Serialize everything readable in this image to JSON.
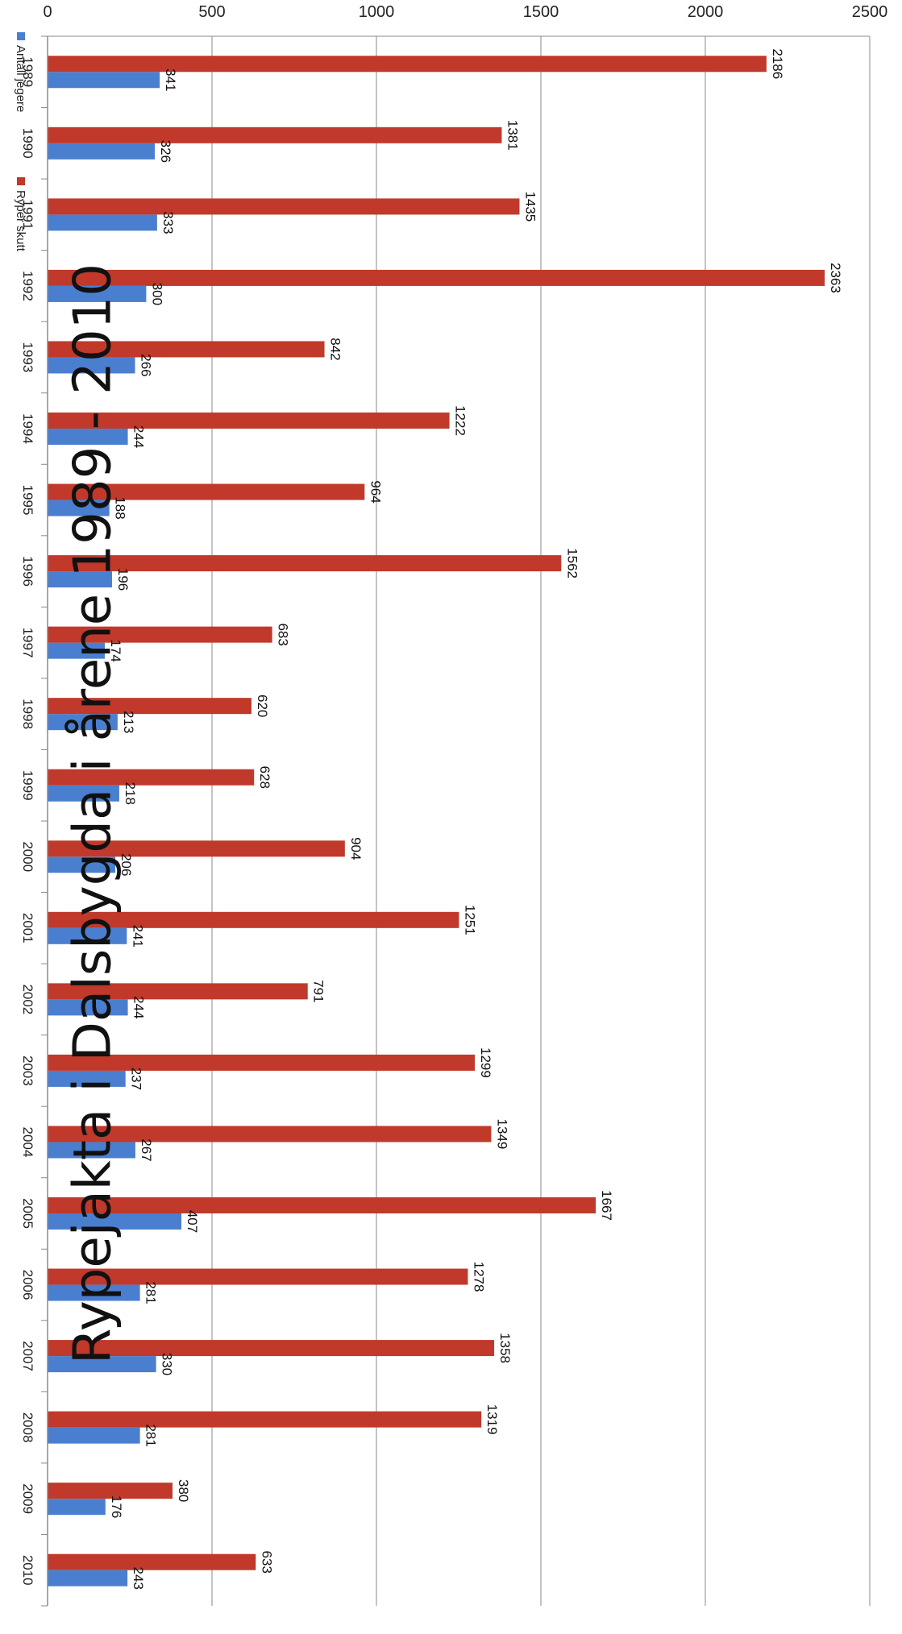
{
  "chart_data": {
    "type": "bar",
    "title": "Rypejakta i Dalsbygda i årene 1989 - 2010",
    "categories": [
      "1989",
      "1990",
      "1991",
      "1992",
      "1993",
      "1994",
      "1995",
      "1996",
      "1997",
      "1998",
      "1999",
      "2000",
      "2001",
      "2002",
      "2003",
      "2004",
      "2005",
      "2006",
      "2007",
      "2008",
      "2009",
      "2010"
    ],
    "series": [
      {
        "name": "Antall jegere",
        "color": "#4a7fcf",
        "values": [
          341,
          326,
          333,
          300,
          266,
          244,
          188,
          196,
          174,
          213,
          218,
          206,
          241,
          244,
          237,
          267,
          407,
          281,
          330,
          281,
          176,
          243
        ]
      },
      {
        "name": "Ryper skutt",
        "color": "#c0392b",
        "values": [
          2186,
          1381,
          1435,
          2363,
          842,
          1222,
          964,
          1562,
          683,
          620,
          628,
          904,
          1251,
          791,
          1299,
          1349,
          1667,
          1278,
          1358,
          1319,
          380,
          633
        ]
      }
    ],
    "ylim": [
      0,
      2500
    ],
    "yticks": [
      "0",
      "500",
      "1000",
      "1500",
      "2000",
      "2500"
    ],
    "grid": true,
    "legend_position": "top-right"
  }
}
